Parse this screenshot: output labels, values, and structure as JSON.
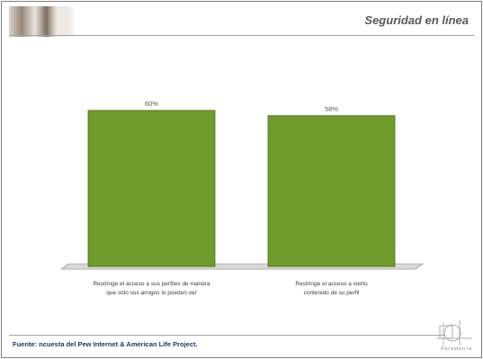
{
  "header": {
    "title": "Seguridad en línea"
  },
  "footer": {
    "source": "Fuente: ncuesta del Pew Internet & American Life Project.",
    "logo_text": "Parametría"
  },
  "colors": {
    "bar_fill": "#6f9a2c",
    "bar_edge": "#4f6f1f",
    "floor": "#d9d9d9"
  },
  "chart_data": {
    "type": "bar",
    "categories": [
      [
        "Restringe el acceso a sus perfiles de manera",
        "que sólo sus amigos lo pueden ver"
      ],
      [
        "Restringe el acceso a cierto",
        "contenido de su perfil"
      ]
    ],
    "values": [
      60,
      58
    ],
    "data_labels": [
      "60%",
      "58%"
    ],
    "title": "",
    "xlabel": "",
    "ylabel": "",
    "ylim": [
      0,
      100
    ],
    "grid": false,
    "legend": "none"
  }
}
